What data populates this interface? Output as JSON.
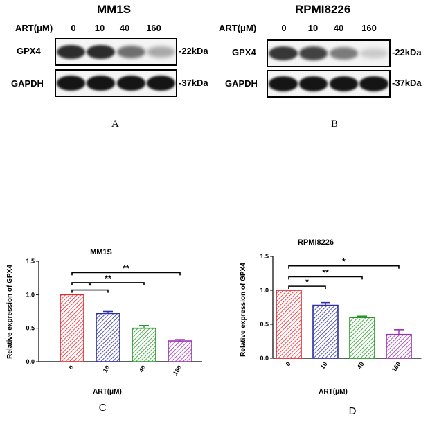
{
  "blots": [
    {
      "title": "MM1S",
      "conc_label": "ART(μM)",
      "lanes": [
        "0",
        "10",
        "40",
        "160"
      ],
      "rows": [
        {
          "name": "GPX4",
          "marker": "-22kDa",
          "intensity": [
            0.85,
            0.85,
            0.55,
            0.3
          ]
        },
        {
          "name": "GAPDH",
          "marker": "-37kDa",
          "intensity": [
            0.95,
            0.95,
            0.95,
            0.95
          ]
        }
      ],
      "panel": "A"
    },
    {
      "title": "RPMI8226",
      "conc_label": "ART(μM)",
      "lanes": [
        "0",
        "10",
        "40",
        "160"
      ],
      "rows": [
        {
          "name": "GPX4",
          "marker": "-22kDa",
          "intensity": [
            0.8,
            0.75,
            0.5,
            0.15
          ]
        },
        {
          "name": "GAPDH",
          "marker": "-37kDa",
          "intensity": [
            0.95,
            0.95,
            0.95,
            0.95
          ]
        }
      ],
      "panel": "B"
    }
  ],
  "chart_data": [
    {
      "type": "bar",
      "title": "MM1S",
      "xlabel": "ART(μM)",
      "ylabel": "Relative expression of GPX4",
      "categories": [
        "0",
        "10",
        "40",
        "160"
      ],
      "values": [
        1.0,
        0.72,
        0.5,
        0.31
      ],
      "errors": [
        0.0,
        0.03,
        0.04,
        0.02
      ],
      "ylim": [
        0,
        1.5
      ],
      "yticks": [
        "0.0",
        "0.5",
        "1.0",
        "1.5"
      ],
      "colors": [
        "#e8262c",
        "#2b2fa3",
        "#239a23",
        "#9b2fb5"
      ],
      "significance": [
        {
          "from": 0,
          "to": 1,
          "label": "*",
          "level": 1.07
        },
        {
          "from": 0,
          "to": 2,
          "label": "**",
          "level": 1.18
        },
        {
          "from": 0,
          "to": 3,
          "label": "**",
          "level": 1.33
        }
      ],
      "panel": "C"
    },
    {
      "type": "bar",
      "title": "RPMI8226",
      "xlabel": "ART(μM)",
      "ylabel": "Relative expression of GPX4",
      "categories": [
        "0",
        "10",
        "40",
        "160"
      ],
      "values": [
        1.0,
        0.78,
        0.6,
        0.35
      ],
      "errors": [
        0.0,
        0.04,
        0.02,
        0.07
      ],
      "ylim": [
        0,
        1.5
      ],
      "yticks": [
        "0.0",
        "0.5",
        "1.0",
        "1.5"
      ],
      "colors": [
        "#e8262c",
        "#2b2fa3",
        "#239a23",
        "#9b2fb5"
      ],
      "significance": [
        {
          "from": 0,
          "to": 1,
          "label": "*",
          "level": 1.06
        },
        {
          "from": 0,
          "to": 2,
          "label": "**",
          "level": 1.2
        },
        {
          "from": 0,
          "to": 3,
          "label": "*",
          "level": 1.36
        }
      ],
      "panel": "D"
    }
  ]
}
